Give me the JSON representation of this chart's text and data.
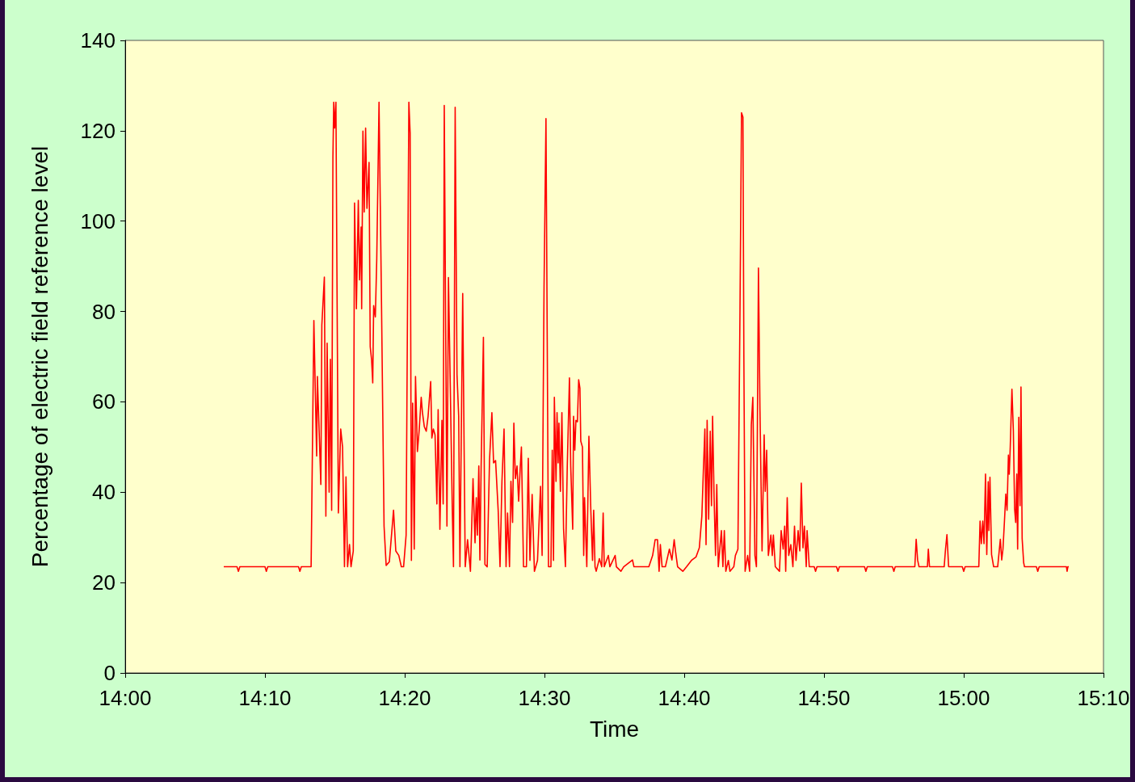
{
  "chart_data": {
    "type": "line",
    "xlabel": "Time",
    "ylabel": "Percentage of electric field reference level",
    "xlim": [
      14,
      15.1667
    ],
    "xticks": [
      {
        "value": 14,
        "label": "14:00"
      },
      {
        "value": 14.1667,
        "label": "14:10"
      },
      {
        "value": 14.3333,
        "label": "14:20"
      },
      {
        "value": 14.5,
        "label": "14:30"
      },
      {
        "value": 14.6667,
        "label": "14:40"
      },
      {
        "value": 14.8333,
        "label": "14:50"
      },
      {
        "value": 15,
        "label": "15:00"
      },
      {
        "value": 15.1667,
        "label": "15:10"
      }
    ],
    "ylim": [
      0,
      140
    ],
    "yticks": [
      0,
      20,
      40,
      60,
      80,
      100,
      120,
      140
    ],
    "grid": false,
    "marker": "none",
    "line_style": "solid",
    "series": [
      {
        "color": "#ff0000",
        "x": [
          14.1175,
          14.1333,
          14.135,
          14.1367,
          14.1667,
          14.1683,
          14.17,
          14.2067,
          14.2083,
          14.21,
          14.2217,
          14.225,
          14.2283,
          14.2292,
          14.2333,
          14.2345,
          14.2375,
          14.2393,
          14.2408,
          14.2432,
          14.2447,
          14.2462,
          14.2477,
          14.2487,
          14.2498,
          14.2513,
          14.2542,
          14.257,
          14.2592,
          14.2615,
          14.2633,
          14.2652,
          14.2675,
          14.2693,
          14.272,
          14.2735,
          14.2757,
          14.278,
          14.2795,
          14.2813,
          14.282,
          14.2835,
          14.285,
          14.2867,
          14.2883,
          14.2908,
          14.2922,
          14.2938,
          14.2952,
          14.2963,
          14.2983,
          14.3,
          14.3027,
          14.3057,
          14.3087,
          14.3112,
          14.315,
          14.32,
          14.3227,
          14.3263,
          14.3293,
          14.332,
          14.335,
          14.3368,
          14.3383,
          14.3398,
          14.3413,
          14.3428,
          14.3447,
          14.3462,
          14.3485,
          14.3507,
          14.353,
          14.3545,
          14.3567,
          14.359,
          14.3612,
          14.3643,
          14.3657,
          14.3675,
          14.3695,
          14.3717,
          14.3732,
          14.3753,
          14.3777,
          14.3792,
          14.3805,
          14.3837,
          14.3855,
          14.3877,
          14.39,
          14.3915,
          14.3935,
          14.3957,
          14.3977,
          14.3992,
          14.4025,
          14.4042,
          14.4055,
          14.4083,
          14.4117,
          14.4148,
          14.4172,
          14.4187,
          14.42,
          14.4217,
          14.423,
          14.4245,
          14.4272,
          14.429,
          14.4317,
          14.4345,
          14.4373,
          14.4393,
          14.4417,
          14.4448,
          14.447,
          14.4493,
          14.4518,
          14.4542,
          14.456,
          14.4583,
          14.46,
          14.462,
          14.4635,
          14.4653,
          14.4673,
          14.4692,
          14.471,
          14.4725,
          14.475,
          14.4785,
          14.4807,
          14.4827,
          14.4853,
          14.488,
          14.4917,
          14.4953,
          14.4972,
          14.4995,
          14.5018,
          14.5033,
          14.5048,
          14.5077,
          14.5093,
          14.5108,
          14.5118,
          14.5138,
          14.515,
          14.5163,
          14.5173,
          14.519,
          14.5208,
          14.5228,
          14.525,
          14.5272,
          14.5298,
          14.5313,
          14.5337,
          14.5347,
          14.5362,
          14.5375,
          14.5393,
          14.5408,
          14.5423,
          14.5433,
          14.5453,
          14.5468,
          14.5478,
          14.5505,
          14.553,
          14.5553,
          14.5573,
          14.5587,
          14.5603,
          14.5617,
          14.5655,
          14.5683,
          14.57,
          14.5713,
          14.5762,
          14.578,
          14.5843,
          14.5858,
          14.5912,
          14.5945,
          14.605,
          14.6067,
          14.6245,
          14.629,
          14.632,
          14.6348,
          14.6367,
          14.6382,
          14.6403,
          14.6442,
          14.649,
          14.652,
          14.6547,
          14.6565,
          14.6588,
          14.665,
          14.6695,
          14.6753,
          14.6808,
          14.6847,
          14.6877,
          14.6895,
          14.6913,
          14.6927,
          14.694,
          14.6958,
          14.6977,
          14.6992,
          14.7005,
          14.7023,
          14.704,
          14.7055,
          14.7073,
          14.711,
          14.7128,
          14.7145,
          14.7163,
          14.7193,
          14.7212,
          14.7258,
          14.7277,
          14.7307,
          14.7332,
          14.735,
          14.7367,
          14.7378,
          14.7393,
          14.7423,
          14.7447,
          14.7467,
          14.7485,
          14.751,
          14.7528,
          14.7552,
          14.757,
          14.7595,
          14.762,
          14.7633,
          14.765,
          14.767,
          14.77,
          14.7717,
          14.773,
          14.7753,
          14.7803,
          14.7823,
          14.7847,
          14.7865,
          14.7877,
          14.7895,
          14.7913,
          14.7938,
          14.7963,
          14.7982,
          14.8,
          14.8025,
          14.8045,
          14.8063,
          14.8083,
          14.81,
          14.8122,
          14.8132,
          14.8158,
          14.8217,
          14.8233,
          14.825,
          14.8483,
          14.85,
          14.8517,
          14.8817,
          14.8833,
          14.885,
          14.915,
          14.9167,
          14.9183,
          14.9417,
          14.9433,
          14.945,
          14.9467,
          14.9567,
          14.9578,
          14.9592,
          14.9767,
          14.9783,
          14.98,
          14.982,
          14.9983,
          15.0,
          15.0017,
          15.018,
          15.0195,
          15.021,
          15.0227,
          15.0242,
          15.026,
          15.0275,
          15.0292,
          15.03,
          15.0313,
          15.0332,
          15.0357,
          15.0405,
          15.0437,
          15.0453,
          15.0468,
          15.0485,
          15.0502,
          15.0517,
          15.0533,
          15.0543,
          15.0555,
          15.0575,
          15.0592,
          15.0607,
          15.062,
          15.0633,
          15.0643,
          15.0657,
          15.0672,
          15.0683,
          15.0697,
          15.0715,
          15.0725,
          15.0867,
          15.0883,
          15.09,
          15.1225,
          15.1233,
          15.1242,
          15.1253
        ],
        "values": [
          23.5,
          23.5,
          22.5,
          23.5,
          23.5,
          22.5,
          23.5,
          23.5,
          22.5,
          23.5,
          23.5,
          78,
          48,
          65.6,
          41.7,
          77,
          87.6,
          34.7,
          73,
          40,
          69.4,
          36,
          114,
          126.3,
          120.6,
          126.3,
          35.4,
          54,
          50,
          23.5,
          43.4,
          23.5,
          28.4,
          23.5,
          27,
          104,
          80.6,
          104.6,
          87,
          98.7,
          80.6,
          119.9,
          102,
          120.6,
          102.8,
          113,
          72.2,
          69.4,
          64.2,
          81.3,
          78.8,
          91.7,
          126.3,
          81,
          32.5,
          23.8,
          24.6,
          36,
          27,
          26,
          23.5,
          23.5,
          30.5,
          84.7,
          126.3,
          119.5,
          24.9,
          59.7,
          27.4,
          65.6,
          49,
          54,
          61,
          57.6,
          54.5,
          53.5,
          56.8,
          64.5,
          52,
          54,
          52.7,
          37.4,
          58.3,
          31.8,
          55.9,
          37.4,
          125.6,
          32.5,
          87.5,
          63.2,
          37,
          23.5,
          125.2,
          66,
          56.8,
          23.5,
          84,
          49.3,
          23.5,
          29.5,
          22.5,
          43,
          28.8,
          38.8,
          30.5,
          45.8,
          25,
          46,
          74.3,
          24,
          23.5,
          47.2,
          57.6,
          46.5,
          47,
          36,
          23.5,
          42.4,
          54,
          23.5,
          35.4,
          23.5,
          42.4,
          33.3,
          55.3,
          43,
          45.8,
          38,
          45,
          50,
          23.5,
          23.5,
          47.5,
          24.9,
          39.5,
          22.5,
          24.9,
          41.3,
          26,
          85.5,
          122.7,
          73.7,
          23.5,
          23.5,
          49.3,
          24.9,
          61,
          42.4,
          57.6,
          46.5,
          55.3,
          40.2,
          57.6,
          31.8,
          23.5,
          45.8,
          65.3,
          45.8,
          31.8,
          56.8,
          49.3,
          55.9,
          55.6,
          64.9,
          63,
          51.3,
          50,
          26,
          38.8,
          23.5,
          52.4,
          36,
          24.9,
          36,
          23.5,
          22.5,
          25.3,
          23.5,
          35.4,
          23.5,
          26,
          23.5,
          26,
          23.5,
          22.5,
          23.5,
          25,
          23.5,
          23.5,
          26,
          29.5,
          29.5,
          22.5,
          28.4,
          23.5,
          23.5,
          27.4,
          25,
          29.5,
          26.6,
          23.5,
          22.5,
          23.5,
          24.9,
          25.7,
          27.7,
          34.7,
          44.7,
          54,
          28.4,
          55.9,
          34,
          53.5,
          37,
          56.8,
          38.8,
          26,
          41.7,
          23.5,
          31.5,
          23.5,
          31.5,
          22.5,
          24.9,
          22.5,
          23.5,
          26,
          27.4,
          80.6,
          124,
          123,
          70,
          22.5,
          26,
          22.5,
          54.9,
          61,
          26,
          23.5,
          89.6,
          58.3,
          27,
          52.7,
          40.2,
          49.3,
          26,
          30.5,
          26,
          30.5,
          23.5,
          22.5,
          31.5,
          27.4,
          32.5,
          22.5,
          38.8,
          26,
          28.4,
          23.5,
          32.5,
          24.9,
          31.5,
          27,
          42,
          27.7,
          32.5,
          23.5,
          31.5,
          23.5,
          23.5,
          22.5,
          23.5,
          23.5,
          22.5,
          23.5,
          23.5,
          22.5,
          23.5,
          23.5,
          22.5,
          23.5,
          23.5,
          29.6,
          25,
          23.5,
          23.5,
          27.4,
          23.5,
          23.5,
          27.4,
          30.6,
          23.5,
          23.5,
          22.5,
          23.5,
          23.5,
          33.6,
          28.6,
          33.6,
          28.6,
          44,
          26.2,
          42.3,
          31.5,
          43.3,
          26.2,
          23.5,
          23.5,
          29.6,
          25,
          27.4,
          33.3,
          39.6,
          36,
          48.2,
          44,
          50,
          62.8,
          53.6,
          36.3,
          33.3,
          44,
          27.4,
          56.6,
          37,
          63.3,
          29.7,
          24.4,
          23.5,
          23.5,
          22.5,
          23.5,
          23.5,
          22.5,
          23.5,
          23.5
        ]
      }
    ]
  }
}
